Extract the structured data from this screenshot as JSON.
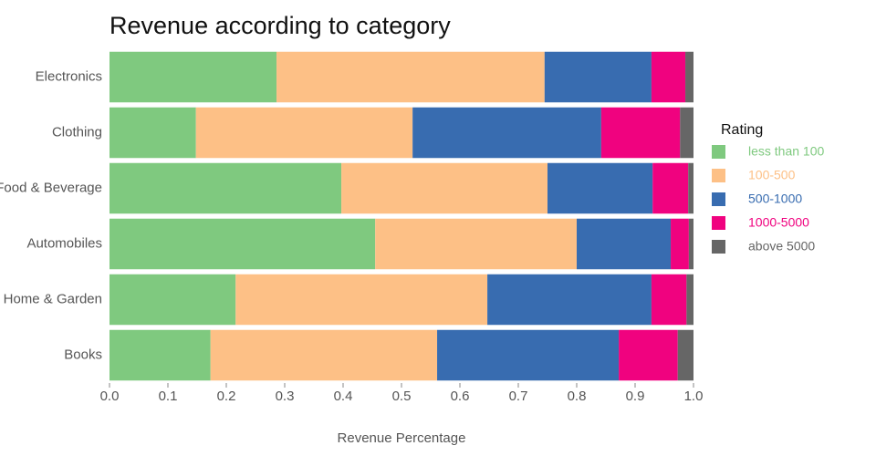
{
  "chart_data": {
    "type": "stacked-barh",
    "title": "Revenue according to category",
    "xlabel": "Revenue Percentage",
    "legend_title": "Rating",
    "categories": [
      "Electronics",
      "Clothing",
      "Food & Beverage",
      "Automobiles",
      "Home & Garden",
      "Books"
    ],
    "series": [
      {
        "name": "less than 100",
        "color": "#7fc97f",
        "values": [
          0.286,
          0.148,
          0.397,
          0.455,
          0.216,
          0.173
        ]
      },
      {
        "name": "100-500",
        "color": "#fdc086",
        "values": [
          0.459,
          0.371,
          0.353,
          0.345,
          0.431,
          0.388
        ]
      },
      {
        "name": "500-1000",
        "color": "#386cb0",
        "values": [
          0.183,
          0.323,
          0.18,
          0.161,
          0.281,
          0.311
        ]
      },
      {
        "name": "1000-5000",
        "color": "#f0027f",
        "values": [
          0.058,
          0.135,
          0.061,
          0.031,
          0.06,
          0.101
        ]
      },
      {
        "name": "above 5000",
        "color": "#666666",
        "values": [
          0.014,
          0.023,
          0.009,
          0.008,
          0.012,
          0.027
        ]
      }
    ],
    "xlim": [
      0,
      1
    ],
    "xticks": [
      {
        "value": 0,
        "label": "0.0"
      },
      0.1,
      0.2,
      0.3,
      0.4,
      0.5,
      0.6,
      0.7,
      0.8,
      0.9,
      {
        "value": 1,
        "label": "1.0"
      }
    ],
    "legend": "right"
  }
}
